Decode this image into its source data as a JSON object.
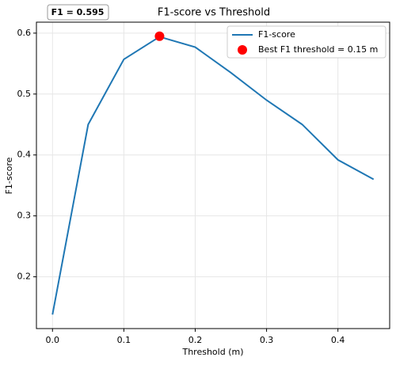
{
  "chart_data": {
    "type": "line",
    "title": "F1-score vs Threshold",
    "annotation": "F1 = 0.595",
    "xlabel": "Threshold (m)",
    "ylabel": "F1-score",
    "x": [
      0,
      0.05,
      0.1,
      0.15,
      0.2,
      0.25,
      0.3,
      0.35,
      0.4,
      0.45
    ],
    "series": [
      {
        "name": "F1-score",
        "color": "#1f77b4",
        "values": [
          0.138,
          0.45,
          0.557,
          0.594,
          0.577,
          0.535,
          0.49,
          0.45,
          0.392,
          0.36
        ]
      },
      {
        "name": "Best F1 threshold = 0.15 m",
        "type": "scatter",
        "color": "#ff0000",
        "x": [
          0.15
        ],
        "values": [
          0.595
        ]
      }
    ],
    "xlim": [
      -0.0225,
      0.4725
    ],
    "ylim": [
      0.115,
      0.618
    ],
    "xticks": [
      {
        "value": 0,
        "label": "0.0"
      },
      0.1,
      0.2,
      0.3,
      0.4
    ],
    "yticks": [
      0.2,
      0.3,
      0.4,
      0.5,
      0.6
    ],
    "grid": true,
    "legend": "upper right"
  }
}
